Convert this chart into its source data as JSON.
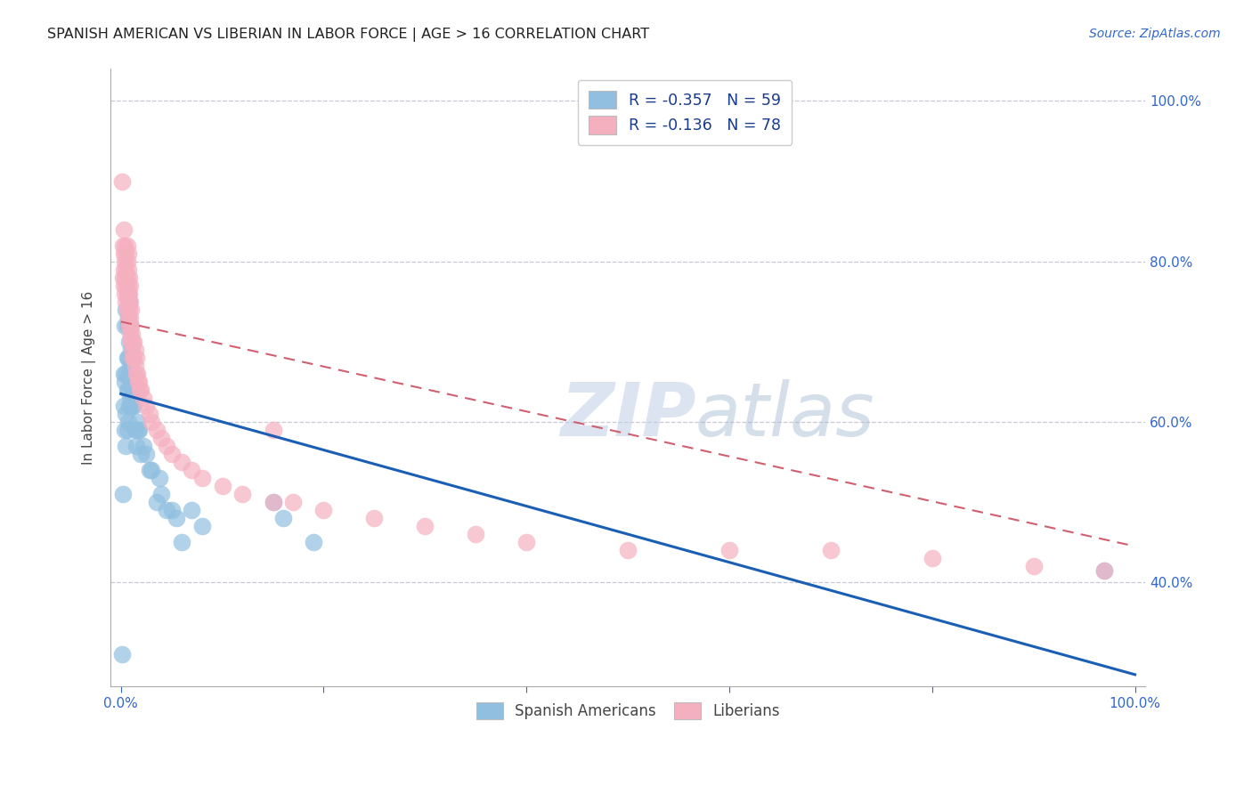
{
  "title": "SPANISH AMERICAN VS LIBERIAN IN LABOR FORCE | AGE > 16 CORRELATION CHART",
  "source": "Source: ZipAtlas.com",
  "ylabel": "In Labor Force | Age > 16",
  "watermark_zip": "ZIP",
  "watermark_atlas": "atlas",
  "legend_blue_R": "-0.357",
  "legend_blue_N": "59",
  "legend_pink_R": "-0.136",
  "legend_pink_N": "78",
  "xlim": [
    -0.01,
    1.01
  ],
  "ylim": [
    0.27,
    1.04
  ],
  "xticks": [
    0.0,
    0.2,
    0.4,
    0.6,
    0.8,
    1.0
  ],
  "yticks": [
    0.4,
    0.6,
    0.8,
    1.0
  ],
  "blue_color": "#90bfe0",
  "pink_color": "#f5b0c0",
  "blue_line_color": "#1a5fb4",
  "pink_line_color": "#d06070",
  "grid_color": "#c8c8d8",
  "background_color": "#ffffff",
  "blue_line_x0": 0.0,
  "blue_line_x1": 1.0,
  "blue_line_y0": 0.635,
  "blue_line_y1": 0.285,
  "pink_line_x0": 0.0,
  "pink_line_x1": 1.0,
  "pink_line_y0": 0.725,
  "pink_line_y1": 0.445,
  "blue_x": [
    0.001,
    0.002,
    0.003,
    0.003,
    0.004,
    0.004,
    0.004,
    0.005,
    0.005,
    0.005,
    0.005,
    0.006,
    0.006,
    0.006,
    0.006,
    0.007,
    0.007,
    0.007,
    0.007,
    0.007,
    0.008,
    0.008,
    0.008,
    0.008,
    0.009,
    0.009,
    0.009,
    0.01,
    0.01,
    0.01,
    0.011,
    0.011,
    0.012,
    0.012,
    0.013,
    0.013,
    0.014,
    0.015,
    0.016,
    0.017,
    0.018,
    0.02,
    0.022,
    0.025,
    0.028,
    0.03,
    0.035,
    0.038,
    0.04,
    0.045,
    0.05,
    0.055,
    0.06,
    0.07,
    0.08,
    0.15,
    0.16,
    0.19,
    0.97
  ],
  "blue_y": [
    0.31,
    0.51,
    0.62,
    0.66,
    0.59,
    0.65,
    0.72,
    0.57,
    0.61,
    0.66,
    0.74,
    0.59,
    0.64,
    0.68,
    0.72,
    0.6,
    0.64,
    0.68,
    0.73,
    0.76,
    0.62,
    0.66,
    0.7,
    0.75,
    0.63,
    0.67,
    0.72,
    0.62,
    0.66,
    0.69,
    0.62,
    0.66,
    0.64,
    0.68,
    0.62,
    0.66,
    0.59,
    0.57,
    0.6,
    0.59,
    0.59,
    0.56,
    0.57,
    0.56,
    0.54,
    0.54,
    0.5,
    0.53,
    0.51,
    0.49,
    0.49,
    0.48,
    0.45,
    0.49,
    0.47,
    0.5,
    0.48,
    0.45,
    0.415
  ],
  "pink_x": [
    0.001,
    0.002,
    0.002,
    0.003,
    0.003,
    0.003,
    0.003,
    0.004,
    0.004,
    0.004,
    0.004,
    0.005,
    0.005,
    0.005,
    0.005,
    0.006,
    0.006,
    0.006,
    0.006,
    0.006,
    0.007,
    0.007,
    0.007,
    0.007,
    0.007,
    0.008,
    0.008,
    0.008,
    0.008,
    0.009,
    0.009,
    0.009,
    0.009,
    0.01,
    0.01,
    0.01,
    0.011,
    0.011,
    0.012,
    0.012,
    0.013,
    0.013,
    0.014,
    0.014,
    0.015,
    0.015,
    0.016,
    0.017,
    0.018,
    0.019,
    0.02,
    0.022,
    0.025,
    0.028,
    0.03,
    0.035,
    0.04,
    0.045,
    0.05,
    0.06,
    0.07,
    0.08,
    0.1,
    0.12,
    0.15,
    0.17,
    0.2,
    0.25,
    0.3,
    0.35,
    0.4,
    0.5,
    0.6,
    0.7,
    0.8,
    0.9,
    0.97,
    0.15
  ],
  "pink_y": [
    0.9,
    0.78,
    0.82,
    0.77,
    0.79,
    0.81,
    0.84,
    0.76,
    0.78,
    0.8,
    0.82,
    0.75,
    0.77,
    0.79,
    0.81,
    0.74,
    0.76,
    0.78,
    0.8,
    0.82,
    0.73,
    0.75,
    0.77,
    0.79,
    0.81,
    0.72,
    0.74,
    0.76,
    0.78,
    0.71,
    0.73,
    0.75,
    0.77,
    0.7,
    0.72,
    0.74,
    0.69,
    0.71,
    0.68,
    0.7,
    0.68,
    0.7,
    0.67,
    0.69,
    0.66,
    0.68,
    0.66,
    0.65,
    0.65,
    0.64,
    0.64,
    0.63,
    0.62,
    0.61,
    0.6,
    0.59,
    0.58,
    0.57,
    0.56,
    0.55,
    0.54,
    0.53,
    0.52,
    0.51,
    0.5,
    0.5,
    0.49,
    0.48,
    0.47,
    0.46,
    0.45,
    0.44,
    0.44,
    0.44,
    0.43,
    0.42,
    0.415,
    0.59
  ]
}
